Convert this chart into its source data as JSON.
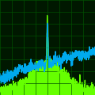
{
  "background_color": "#001800",
  "grid_color": "#005500",
  "blue_color": "#00aaee",
  "green_color": "#66ff00",
  "n_points": 600,
  "fig_width": 1.2,
  "fig_height": 1.2,
  "dpi": 100
}
